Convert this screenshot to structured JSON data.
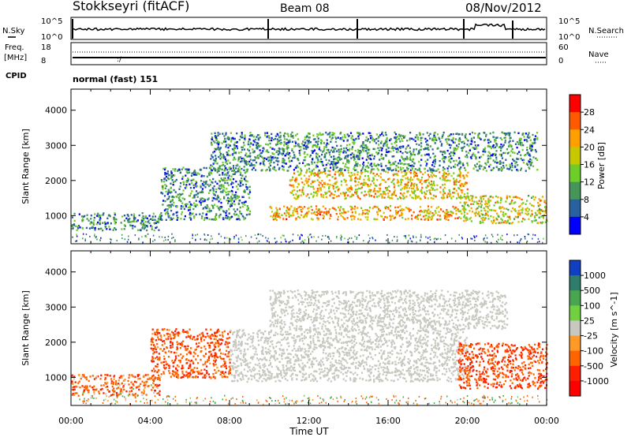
{
  "header": {
    "site": "Stokkseyri (fitACF)",
    "beam": "Beam 08",
    "date": "08/Nov/2012"
  },
  "status_panels": {
    "nsky_label": "N.Sky",
    "freq_label_1": "Freq.",
    "freq_label_2": "[MHz]",
    "cpid_label": "CPID",
    "nsearch_label": "N.Search",
    "nave_label": "Nave",
    "noise_left_ticks": [
      "10^5",
      "10^0"
    ],
    "noise_right_ticks": [
      "10^5",
      "10^0"
    ],
    "freq_left_ticks": [
      "18",
      "8"
    ],
    "nave_right_ticks": [
      "60",
      "0"
    ],
    "cpid_text": "normal (fast) 151"
  },
  "chart_data": [
    {
      "type": "heatmap",
      "title": "Power",
      "xlabel": "Time UT",
      "ylabel": "Slant Range [km]",
      "x_ticks": [
        "00:00",
        "04:00",
        "08:00",
        "12:00",
        "16:00",
        "20:00",
        "00:00"
      ],
      "xlim_hours": [
        0,
        24
      ],
      "ylim": [
        200,
        4600
      ],
      "y_ticks": [
        1000,
        2000,
        3000,
        4000
      ],
      "colorbar": {
        "label": "Power [dB]",
        "tick_labels": [
          "28",
          "24",
          "20",
          "16",
          "12",
          "8",
          "4"
        ],
        "colors": [
          "#ff0000",
          "#ff5a00",
          "#ffa000",
          "#c8c800",
          "#6ecd28",
          "#46965a",
          "#2860a0",
          "#0000ff"
        ]
      },
      "scatter_regions": [
        {
          "name": "early low band",
          "t": [
            0,
            4.5
          ],
          "range": [
            600,
            1100
          ],
          "value": 8
        },
        {
          "name": "morning arc",
          "t": [
            4.5,
            9
          ],
          "range": [
            900,
            2400
          ],
          "value": 8
        },
        {
          "name": "main upper band",
          "t": [
            11,
            20
          ],
          "range": [
            1500,
            2300
          ],
          "value": 20
        },
        {
          "name": "main lower band",
          "t": [
            10,
            19.5
          ],
          "range": [
            900,
            1300
          ],
          "value": 22
        },
        {
          "name": "late band",
          "t": [
            19.5,
            24
          ],
          "range": [
            800,
            1600
          ],
          "value": 18
        },
        {
          "name": "upper scattered",
          "t": [
            7,
            23.5
          ],
          "range": [
            2300,
            3400
          ],
          "value": 8
        }
      ]
    },
    {
      "type": "heatmap",
      "title": "Velocity",
      "xlabel": "Time UT",
      "ylabel": "Slant Range [km]",
      "x_ticks": [
        "00:00",
        "04:00",
        "08:00",
        "12:00",
        "16:00",
        "20:00",
        "00:00"
      ],
      "xlim_hours": [
        0,
        24
      ],
      "ylim": [
        200,
        4600
      ],
      "y_ticks": [
        1000,
        2000,
        3000,
        4000
      ],
      "colorbar": {
        "label": "Velocity [m s^-1]",
        "tick_labels": [
          "1000",
          "500",
          "100",
          "25",
          "-25",
          "-100",
          "-500",
          "-1000"
        ],
        "colors": [
          "#1040c0",
          "#2e7d6a",
          "#49a550",
          "#70d040",
          "#c8c8c0",
          "#ff9a28",
          "#ff6400",
          "#ff1e00",
          "#ff0000"
        ]
      },
      "scatter_regions": [
        {
          "name": "early low band",
          "t": [
            0,
            4.5
          ],
          "range": [
            500,
            1100
          ],
          "value": -300
        },
        {
          "name": "morning arc",
          "t": [
            4,
            8
          ],
          "range": [
            1000,
            2400
          ],
          "value": -400
        },
        {
          "name": "ground scatter",
          "t": [
            8,
            20
          ],
          "range": [
            900,
            2400
          ],
          "value": 0
        },
        {
          "name": "upper ground scatter",
          "t": [
            10,
            22
          ],
          "range": [
            2400,
            3500
          ],
          "value": 0
        },
        {
          "name": "late band",
          "t": [
            19.5,
            24
          ],
          "range": [
            700,
            2000
          ],
          "value": -500
        }
      ]
    }
  ]
}
